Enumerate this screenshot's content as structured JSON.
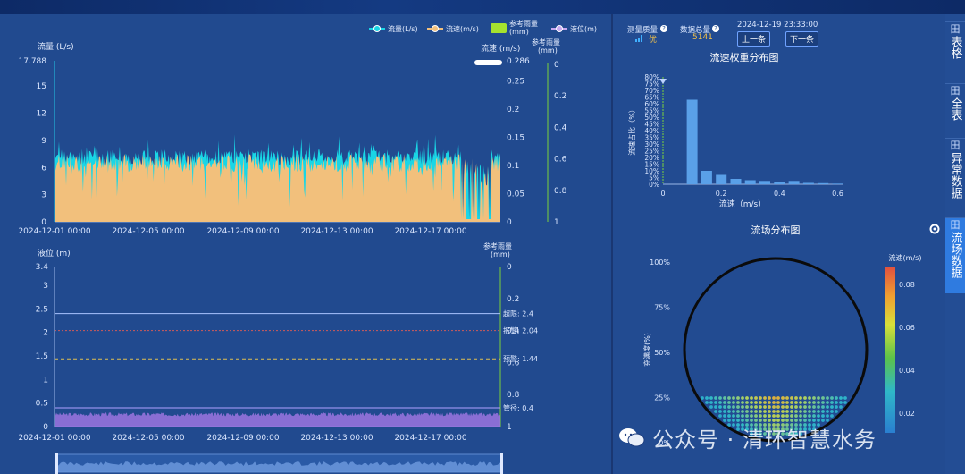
{
  "legend": {
    "flow": "流量(L/s)",
    "velocity": "流速(m/s)",
    "rain": "参考雨量\n(mm)",
    "level": "液位(m)"
  },
  "top_chart": {
    "left_axis_title": "流量 (L/s)",
    "mid_axis_title": "流速 (m/s)",
    "right_axis_title": "参考雨量\n(mm)",
    "left_ticks": [
      "17.788",
      "15",
      "12",
      "9",
      "6",
      "3",
      "0"
    ],
    "mid_ticks": [
      "0.286",
      "0.25",
      "0.2",
      "0.15",
      "0.1",
      "0.05",
      "0"
    ],
    "right_ticks": [
      "0",
      "0.2",
      "0.4",
      "0.6",
      "0.8",
      "1"
    ],
    "x_ticks": [
      "2024-12-01 00:00",
      "2024-12-05 00:00",
      "2024-12-09 00:00",
      "2024-12-13 00:00",
      "2024-12-17 00:00"
    ]
  },
  "bottom_chart": {
    "left_axis_title": "液位 (m)",
    "right_axis_title": "参考雨量\n(mm)",
    "left_ticks": [
      "3.4",
      "3",
      "2.5",
      "2",
      "1.5",
      "1",
      "0.5",
      "0"
    ],
    "right_ticks": [
      "0",
      "0.2",
      "0.4",
      "0.6",
      "0.8",
      "1"
    ],
    "x_ticks": [
      "2024-12-01 00:00",
      "2024-12-05 00:00",
      "2024-12-09 00:00",
      "2024-12-13 00:00",
      "2024-12-17 00:00"
    ],
    "lines": [
      {
        "label": "超限: 2.4",
        "value": 2.4,
        "color": "#a9c4ff"
      },
      {
        "label": "报警: 2.04",
        "value": 2.04,
        "color": "#d05a5a"
      },
      {
        "label": "预警: 1.44",
        "value": 1.44,
        "color": "#e0c050"
      },
      {
        "label": "管径: 0.4",
        "value": 0.4,
        "color": "#b0a0ff"
      }
    ]
  },
  "status": {
    "quality_label": "测量质量",
    "quality_value": "优",
    "total_label": "数据总量",
    "total_value": "5141",
    "datetime": "2024-12-19 23:33:00",
    "prev_button": "上一条",
    "next_button": "下一条"
  },
  "histogram": {
    "title": "流速权重分布图",
    "ylabel": "流速占比（%）",
    "xlabel": "流速（m/s）",
    "y_ticks": [
      "80%",
      "75%",
      "70%",
      "65%",
      "60%",
      "55%",
      "50%",
      "45%",
      "40%",
      "35%",
      "30%",
      "25%",
      "20%",
      "15%",
      "10%",
      "5%",
      "0%"
    ],
    "x_ticks": [
      "0",
      "0.2",
      "0.4",
      "0.6"
    ]
  },
  "flowfield": {
    "title": "流场分布图",
    "ylabel": "充满度(%)",
    "y_ticks": [
      "100%",
      "75%",
      "50%",
      "25%",
      "0%"
    ],
    "colorbar_title": "流速(m/s)",
    "colorbar_ticks": [
      "0.08",
      "0.06",
      "0.04",
      "0.02"
    ]
  },
  "sidebar": {
    "tabs": [
      {
        "icon": "田",
        "label": "表格"
      },
      {
        "icon": "田",
        "label": "全表"
      },
      {
        "icon": "田",
        "label": "异常数据"
      },
      {
        "icon": "田",
        "label": "流场数据"
      }
    ]
  },
  "watermark": "公众号 · 清环智慧水务",
  "chart_data": [
    {
      "type": "area",
      "title": "",
      "series": [
        {
          "name": "流量(L/s)",
          "axis": "left",
          "values_description_level": [
            6.5,
            6.8,
            7.2,
            6.9,
            7.4,
            7.0,
            6.6,
            7.3,
            7.1,
            6.8,
            7.5,
            6.9,
            7.2,
            7.0,
            6.7,
            7.4,
            7.1,
            6.9,
            7.3,
            7.0,
            6.8,
            7.2,
            7.1,
            6.9,
            7.4,
            7.0,
            6.5,
            7.2,
            0.5,
            7.0
          ]
        },
        {
          "name": "流速(m/s)",
          "axis": "mid",
          "values_description_level": [
            0.09,
            0.1,
            0.1,
            0.09,
            0.1,
            0.1,
            0.09,
            0.1,
            0.1,
            0.09,
            0.11,
            0.09,
            0.1,
            0.1,
            0.09,
            0.1,
            0.1,
            0.09,
            0.1,
            0.1,
            0.09,
            0.1,
            0.1,
            0.09,
            0.1,
            0.1,
            0.09,
            0.1,
            0.05,
            0.1
          ]
        }
      ],
      "ylim_left": [
        0,
        17.788
      ],
      "ylim_mid": [
        0,
        0.286
      ],
      "ylim_right": [
        0,
        1
      ]
    },
    {
      "type": "line",
      "title": "",
      "series": [
        {
          "name": "液位(m)",
          "values": [
            0.24,
            0.26,
            0.25,
            0.27,
            0.24,
            0.25,
            0.26,
            0.24,
            0.25,
            0.27,
            0.25,
            0.24,
            0.26,
            0.25,
            0.24,
            0.26,
            0.25,
            0.27,
            0.24,
            0.25,
            0.26,
            0.24,
            0.25,
            0.26,
            0.25,
            0.24,
            0.26,
            0.25,
            0.24,
            0.26
          ]
        }
      ],
      "ylim": [
        0,
        3.4
      ]
    },
    {
      "type": "bar",
      "title": "流速权重分布图",
      "categories": [
        "0.05",
        "0.1",
        "0.15",
        "0.2",
        "0.25",
        "0.3",
        "0.35",
        "0.4",
        "0.45",
        "0.5",
        "0.55",
        "0.6"
      ],
      "values": [
        0,
        63,
        10,
        7,
        4,
        3,
        2.5,
        2,
        2.5,
        1,
        0.8,
        0.5
      ],
      "xlabel": "流速（m/s）",
      "ylabel": "流速占比（%）",
      "ylim": [
        0,
        80
      ]
    },
    {
      "type": "heatmap",
      "title": "流场分布图",
      "fill_level_percent": 25,
      "colorbar_range": [
        0.01,
        0.09
      ]
    }
  ]
}
